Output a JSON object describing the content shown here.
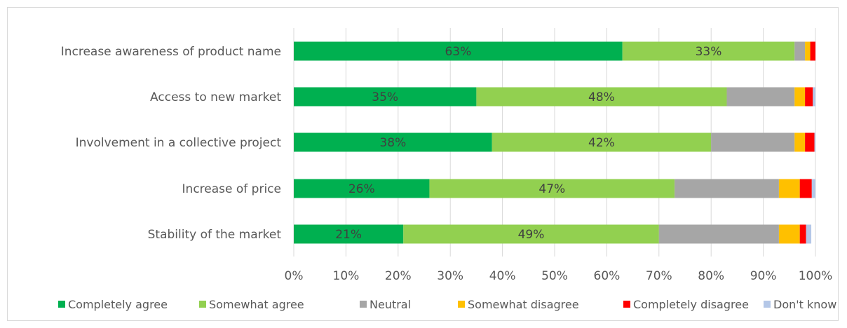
{
  "chart_data": {
    "type": "bar",
    "orientation": "horizontal",
    "stacked": true,
    "categories": [
      "Increase awareness of product name",
      "Access to new market",
      "Involvement in a collective project",
      "Increase of price",
      "Stability of the market"
    ],
    "series": [
      {
        "name": "Completely agree",
        "color": "#00b050",
        "values": [
          0.63,
          0.35,
          0.38,
          0.26,
          0.21
        ]
      },
      {
        "name": "Somewhat agree",
        "color": "#92d050",
        "values": [
          0.33,
          0.48,
          0.42,
          0.47,
          0.49
        ]
      },
      {
        "name": "Neutral",
        "color": "#a6a6a6",
        "values": [
          0.02,
          0.13,
          0.16,
          0.2,
          0.23
        ]
      },
      {
        "name": "Somewhat disagree",
        "color": "#ffc000",
        "values": [
          0.01,
          0.02,
          0.02,
          0.04,
          0.04
        ]
      },
      {
        "name": "Completely disagree",
        "color": "#ff0000",
        "values": [
          0.01,
          0.015,
          0.018,
          0.023,
          0.012
        ]
      },
      {
        "name": "Don't know",
        "color": "#b4c7e7",
        "values": [
          0.002,
          0.008,
          0.008,
          0.007,
          0.01
        ]
      }
    ],
    "data_labels": [
      [
        "63%",
        "33%"
      ],
      [
        "35%",
        "48%"
      ],
      [
        "38%",
        "42%"
      ],
      [
        "26%",
        "47%"
      ],
      [
        "21%",
        "49%"
      ]
    ],
    "xticks": [
      "0%",
      "10%",
      "20%",
      "30%",
      "40%",
      "50%",
      "60%",
      "70%",
      "80%",
      "90%",
      "100%"
    ],
    "xlim": [
      0,
      1
    ],
    "grid": true,
    "legend_position": "bottom",
    "title": "",
    "xlabel": "",
    "ylabel": ""
  }
}
